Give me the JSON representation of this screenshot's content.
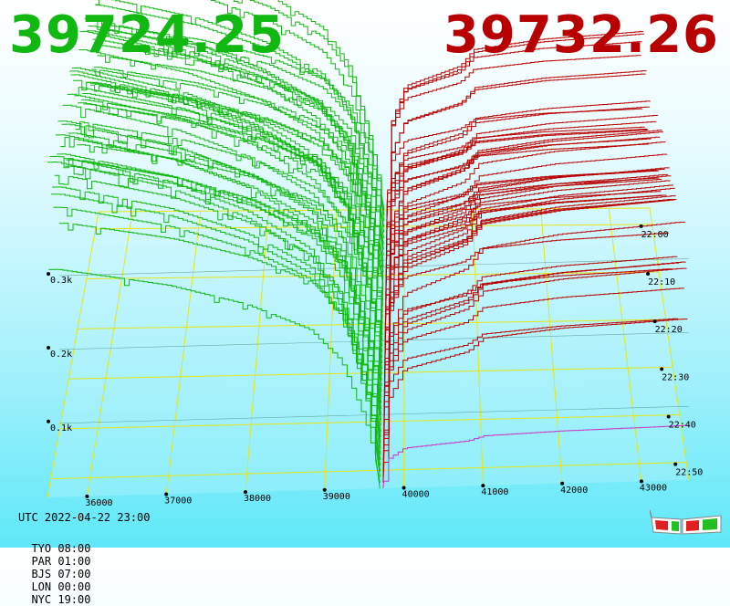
{
  "header": {
    "bid_price": "39724.25",
    "ask_price": "39732.26",
    "bid_color": "#11b811",
    "ask_color": "#b80000"
  },
  "footer": {
    "utc": "UTC 2022-04-22 23:00",
    "timezones": [
      "TYO 08:00",
      "PAR 01:00",
      "BJS 07:00",
      "LON 00:00",
      "NYC 19:00"
    ]
  },
  "icons": {
    "glasses": "3d-glasses-icon"
  },
  "chart_data": {
    "type": "area",
    "title": "",
    "xlabel": "",
    "ylabel": "",
    "x_ticks": [
      "36000",
      "37000",
      "38000",
      "39000",
      "40000",
      "41000",
      "42000",
      "43000"
    ],
    "x_tick_values": [
      36000,
      37000,
      38000,
      39000,
      40000,
      41000,
      42000,
      43000
    ],
    "depth_ticks": [
      "0.1k",
      "0.2k",
      "0.3k"
    ],
    "depth_tick_values": [
      100,
      200,
      300
    ],
    "time_ticks": [
      "22:00",
      "22:10",
      "22:20",
      "22:30",
      "22:40",
      "22:50"
    ],
    "xlim": [
      35500,
      43600
    ],
    "ylim": [
      0,
      470
    ],
    "mid_price": 39728,
    "grid": true,
    "grid_color": "#e5e51a",
    "series": [
      {
        "side": "bid",
        "color": "#11b811"
      },
      {
        "side": "ask",
        "color": "#b80000"
      }
    ],
    "snapshot_count": 50,
    "latest_ask_color": "#cc33cc",
    "bid_depth_profile": [
      {
        "price": 35600,
        "depth": 415
      },
      {
        "price": 36000,
        "depth": 405
      },
      {
        "price": 37000,
        "depth": 380
      },
      {
        "price": 38000,
        "depth": 340
      },
      {
        "price": 38800,
        "depth": 290
      },
      {
        "price": 39200,
        "depth": 230
      },
      {
        "price": 39500,
        "depth": 120
      },
      {
        "price": 39700,
        "depth": 10
      }
    ],
    "ask_depth_profile": [
      {
        "price": 39740,
        "depth": 20
      },
      {
        "price": 39800,
        "depth": 160
      },
      {
        "price": 40000,
        "depth": 215
      },
      {
        "price": 40800,
        "depth": 245
      },
      {
        "price": 41000,
        "depth": 270
      },
      {
        "price": 42000,
        "depth": 285
      },
      {
        "price": 43000,
        "depth": 292
      },
      {
        "price": 43500,
        "depth": 296
      }
    ]
  }
}
